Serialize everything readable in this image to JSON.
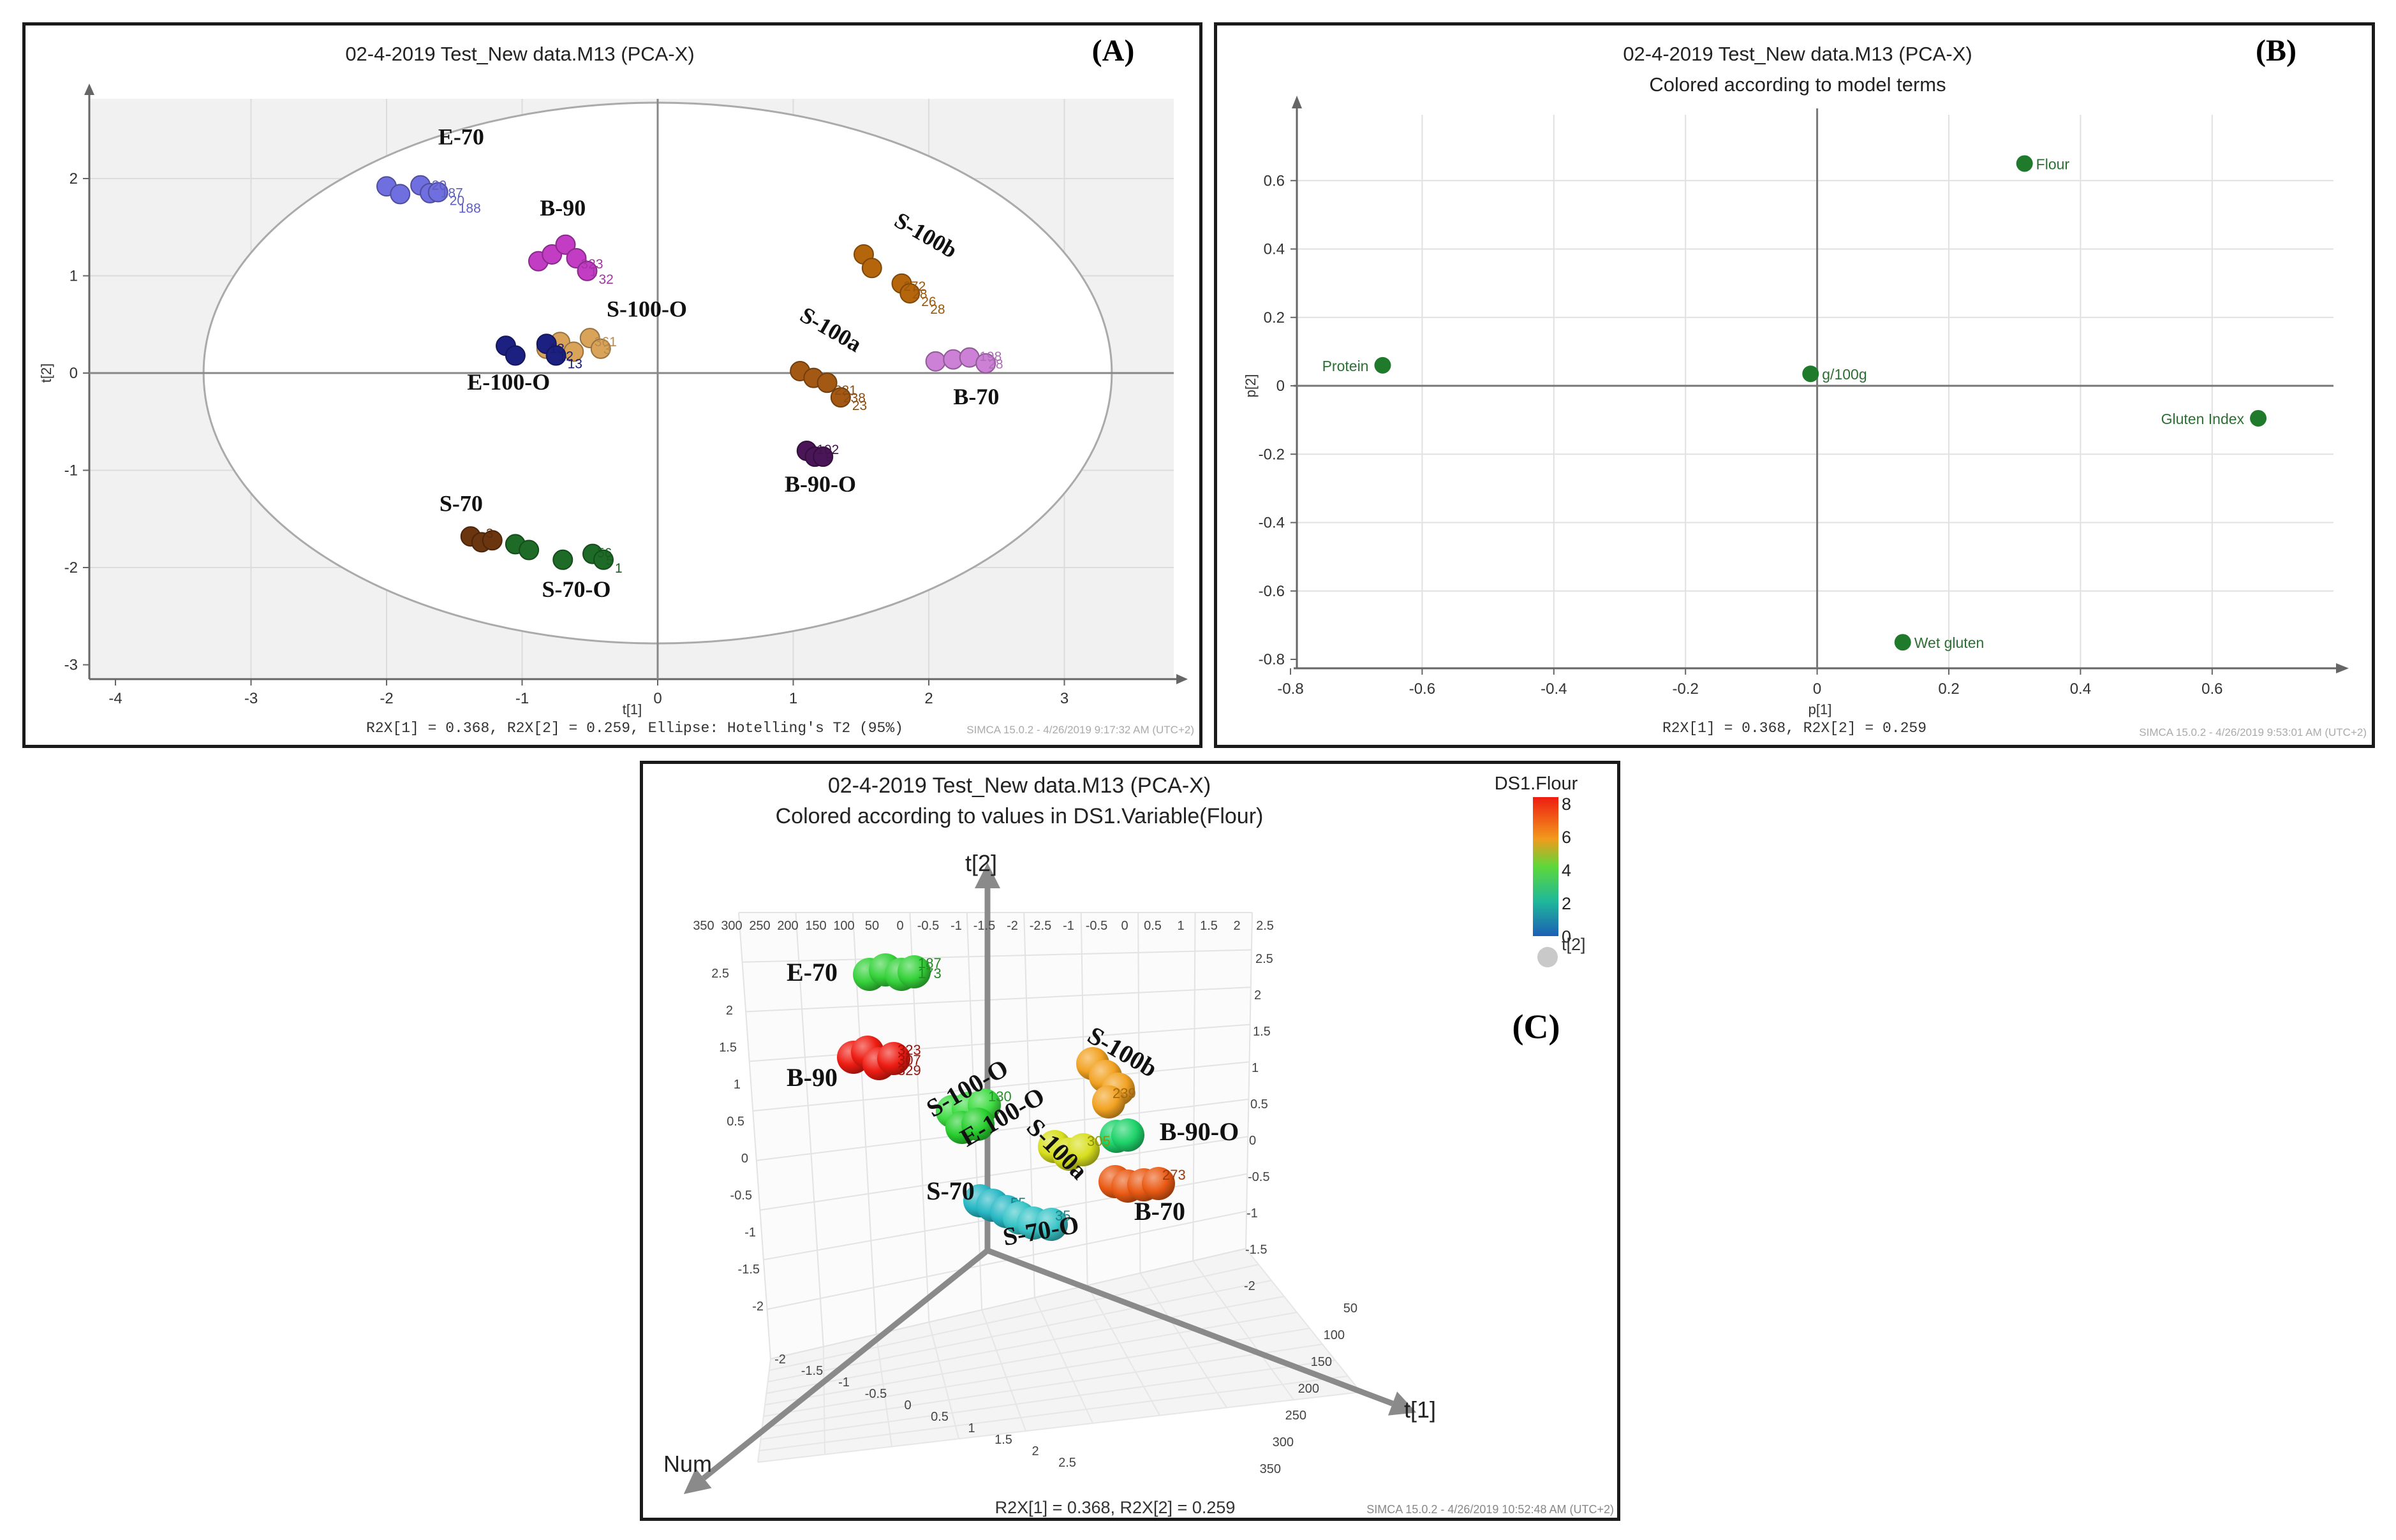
{
  "chart_data": [
    {
      "type": "scatter",
      "panel_label": "(A)",
      "title": "02-4-2019 Test_New data.M13 (PCA-X)",
      "xlabel": "t[1]",
      "ylabel": "t[2]",
      "xlim": [
        -4,
        4
      ],
      "ylim": [
        -3,
        3
      ],
      "xticks": [
        "-4",
        "-3",
        "-2",
        "-1",
        "0",
        "1",
        "2",
        "3"
      ],
      "yticks": [
        "-3",
        "-2",
        "-1",
        "0",
        "1",
        "2"
      ],
      "footer": "R2X[1] = 0.368, R2X[2] = 0.259, Ellipse: Hotelling's T2 (95%)",
      "stamp": "SIMCA 15.0.2 - 4/26/2019 9:17:32 AM (UTC+2)",
      "ellipse": {
        "center": [
          0,
          0
        ],
        "radius_x": 3.35,
        "radius_y": 2.78
      },
      "groups": [
        {
          "name": "E-70",
          "color": "#6f6fe0",
          "label_at": [
            -1.45,
            2.35
          ],
          "points": [
            [
              -2.0,
              1.92
            ],
            [
              -1.9,
              1.84
            ],
            [
              -1.75,
              1.93
            ],
            [
              -1.68,
              1.85
            ],
            [
              -1.62,
              1.86
            ]
          ],
          "ids": [
            "20",
            "187",
            "20",
            "188"
          ]
        },
        {
          "name": "B-90",
          "color": "#c23cc4",
          "label_at": [
            -0.7,
            1.62
          ],
          "points": [
            [
              -0.88,
              1.15
            ],
            [
              -0.78,
              1.22
            ],
            [
              -0.68,
              1.32
            ],
            [
              -0.6,
              1.18
            ],
            [
              -0.52,
              1.05
            ]
          ],
          "ids": [
            "323",
            "1",
            "32"
          ]
        },
        {
          "name": "S-100-O",
          "color": "#d9a35a",
          "label_at": [
            -0.08,
            0.58
          ],
          "points": [
            [
              -0.82,
              0.25
            ],
            [
              -0.72,
              0.32
            ],
            [
              -0.62,
              0.22
            ],
            [
              -0.5,
              0.36
            ],
            [
              -0.42,
              0.25
            ]
          ],
          "ids": [
            "361",
            "3"
          ]
        },
        {
          "name": "E-100-O",
          "color": "#1c2080",
          "label_at": [
            -1.1,
            -0.17
          ],
          "points": [
            [
              -1.12,
              0.28
            ],
            [
              -1.05,
              0.18
            ],
            [
              -0.82,
              0.3
            ],
            [
              -0.75,
              0.18
            ]
          ],
          "ids": [
            "13",
            "12",
            "13"
          ]
        },
        {
          "name": "S-100b",
          "color": "#b5660c",
          "label_at": [
            1.95,
            1.35
          ],
          "label_rotate": 30,
          "points": [
            [
              1.52,
              1.22
            ],
            [
              1.58,
              1.08
            ],
            [
              1.8,
              0.92
            ],
            [
              1.86,
              0.82
            ]
          ],
          "ids": [
            "272",
            "28",
            "26",
            "28"
          ]
        },
        {
          "name": "S-100a",
          "color": "#a35913",
          "label_at": [
            1.25,
            0.38
          ],
          "label_rotate": 30,
          "points": [
            [
              1.05,
              0.02
            ],
            [
              1.15,
              -0.05
            ],
            [
              1.25,
              -0.1
            ],
            [
              1.35,
              -0.25
            ]
          ],
          "ids": [
            "221",
            "238",
            "23"
          ]
        },
        {
          "name": "B-70",
          "color": "#cc80d6",
          "label_at": [
            2.35,
            -0.32
          ],
          "points": [
            [
              2.05,
              0.12
            ],
            [
              2.18,
              0.14
            ],
            [
              2.3,
              0.16
            ],
            [
              2.42,
              0.1
            ]
          ],
          "ids": [
            "198",
            "28"
          ]
        },
        {
          "name": "B-90-O",
          "color": "#4a1658",
          "label_at": [
            1.2,
            -1.22
          ],
          "points": [
            [
              1.1,
              -0.8
            ],
            [
              1.16,
              -0.86
            ],
            [
              1.22,
              -0.86
            ]
          ],
          "ids": [
            "102",
            "9"
          ]
        },
        {
          "name": "S-70",
          "color": "#6b3510",
          "label_at": [
            -1.45,
            -1.42
          ],
          "points": [
            [
              -1.38,
              -1.68
            ],
            [
              -1.3,
              -1.74
            ],
            [
              -1.22,
              -1.72
            ]
          ],
          "ids": [
            "3"
          ]
        },
        {
          "name": "S-70-O",
          "color": "#1d6b27",
          "label_at": [
            -0.6,
            -2.3
          ],
          "points": [
            [
              -1.05,
              -1.76
            ],
            [
              -0.95,
              -1.82
            ],
            [
              -0.7,
              -1.92
            ],
            [
              -0.48,
              -1.86
            ],
            [
              -0.4,
              -1.92
            ]
          ],
          "ids": [
            "56",
            "5",
            "1"
          ]
        }
      ]
    },
    {
      "type": "scatter",
      "panel_label": "(B)",
      "title": "02-4-2019 Test_New data.M13 (PCA-X)",
      "subtitle": "Colored according to model terms",
      "xlabel": "p[1]",
      "ylabel": "p[2]",
      "xlim": [
        -0.8,
        0.8
      ],
      "ylim": [
        -0.8,
        0.8
      ],
      "xticks": [
        "-0.8",
        "-0.6",
        "-0.4",
        "-0.2",
        "0",
        "0.2",
        "0.4",
        "0.6"
      ],
      "yticks": [
        "-0.8",
        "-0.6",
        "-0.4",
        "-0.2",
        "0",
        "0.2",
        "0.4",
        "0.6"
      ],
      "footer": "R2X[1] = 0.368, R2X[2] = 0.259",
      "stamp": "SIMCA 15.0.2 - 4/26/2019 9:53:01 AM (UTC+2)",
      "point_color": "#207a2c",
      "points": [
        {
          "label": "Flour",
          "x": 0.315,
          "y": 0.65
        },
        {
          "label": "Protein",
          "x": -0.66,
          "y": 0.06
        },
        {
          "label": "g/100g",
          "x": -0.01,
          "y": 0.035
        },
        {
          "label": "Gluten Index",
          "x": 0.67,
          "y": -0.095
        },
        {
          "label": "Wet gluten",
          "x": 0.13,
          "y": -0.75
        }
      ]
    },
    {
      "type": "scatter",
      "panel_label": "(C)",
      "title": "02-4-2019 Test_New data.M13 (PCA-X)",
      "subtitle": "Colored according to values in DS1.Variable(Flour)",
      "axes3d": {
        "x_label": "t[1]",
        "y_label": "t[2]",
        "z_label": "Num",
        "top_ticks": [
          "350",
          "300",
          "250",
          "200",
          "150",
          "100",
          "50",
          "0",
          "-0.5",
          "-1",
          "-1.5",
          "-2",
          "-2.5",
          "-1",
          "-0.5",
          "0",
          "0.5",
          "1",
          "1.5",
          "2",
          "2.5"
        ],
        "left_ticks": [
          "2.5",
          "2",
          "1.5",
          "1",
          "0.5",
          "0",
          "-0.5",
          "-1",
          "-1.5",
          "-2"
        ],
        "right_ticks": [
          "2.5",
          "2",
          "1.5",
          "1",
          "0.5",
          "0",
          "-0.5",
          "-1",
          "-1.5",
          "-2"
        ],
        "bottom_ticks": [
          "-2",
          "-1.5",
          "-1",
          "-0.5",
          "0",
          "0.5",
          "1",
          "1.5",
          "2",
          "2.5"
        ],
        "depth_ticks": [
          "50",
          "100",
          "150",
          "200",
          "250",
          "300",
          "350"
        ]
      },
      "colorbar": {
        "title": "DS1.Flour",
        "ticks": [
          "8",
          "6",
          "4",
          "2",
          "0"
        ],
        "size_label": "t[2]"
      },
      "footer": "R2X[1] = 0.368, R2X[2] = 0.259",
      "stamp": "SIMCA 15.0.2 - 4/26/2019 10:52:48 AM (UTC+2)",
      "groups": [
        {
          "name": "E-70",
          "flour": 5,
          "color": "#35d23a",
          "ids": [
            "187",
            "173"
          ]
        },
        {
          "name": "B-90",
          "flour": 9,
          "color": "#ee1c12",
          "ids": [
            "323",
            "307",
            "329"
          ]
        },
        {
          "name": "S-100-O",
          "flour": 5,
          "color": "#3fdd43",
          "ids": [
            "130"
          ]
        },
        {
          "name": "E-100-O",
          "flour": 5,
          "color": "#28cf2f",
          "ids": []
        },
        {
          "name": "S-100b",
          "flour": 7,
          "color": "#f2a222",
          "ids": [
            "239"
          ]
        },
        {
          "name": "B-90-O",
          "flour": 4,
          "color": "#1ed36a",
          "ids": []
        },
        {
          "name": "S-100a",
          "flour": 6,
          "color": "#d8df1e",
          "ids": [
            "305"
          ]
        },
        {
          "name": "B-70",
          "flour": 8,
          "color": "#ea5a14",
          "ids": [
            "273"
          ]
        },
        {
          "name": "S-70",
          "flour": 2,
          "color": "#27b8c5",
          "ids": [
            "55"
          ]
        },
        {
          "name": "S-70-O",
          "flour": 2,
          "color": "#37c4c7",
          "ids": [
            "35"
          ]
        }
      ]
    }
  ]
}
